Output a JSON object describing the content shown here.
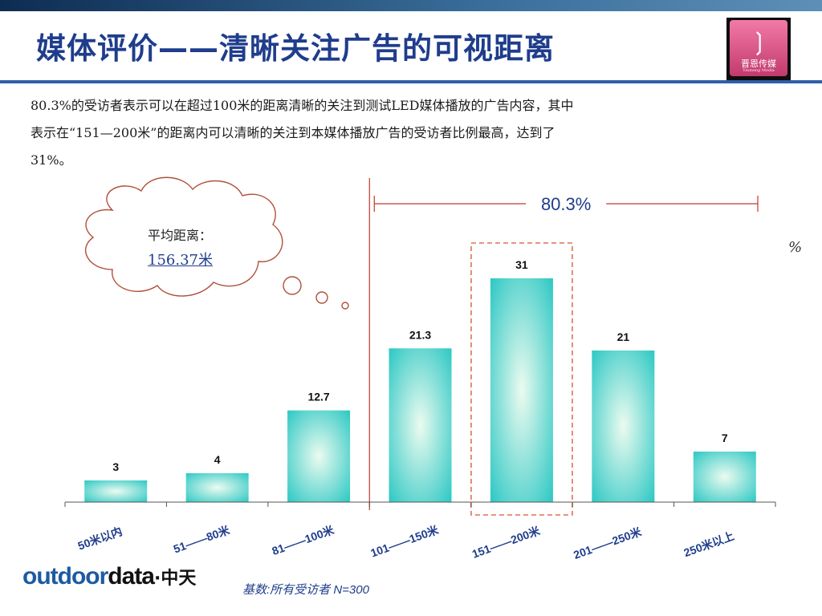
{
  "header": {
    "title": "媒体评价——清晰关注广告的可视距离",
    "logo_text": "晋恩传媒",
    "logo_subtext": "Yinmeng Media"
  },
  "summary": {
    "line1": "80.3%的受访者表示可以在超过100米的距离清晰的关注到测试LED媒体播放的广告内容，其中",
    "line2": "表示在“151—200米”的距离内可以清晰的关注到本媒体播放广告的受访者比例最高，达到了",
    "line3": "31%。"
  },
  "callout": {
    "label": "平均距离：",
    "value": "156.37米"
  },
  "bracket_label": "80.3%",
  "unit_label": "%",
  "chart_data": {
    "type": "bar",
    "categories": [
      "50米以内",
      "51——80米",
      "81——100米",
      "101——150米",
      "151——200米",
      "201——250米",
      "250米以上"
    ],
    "values": [
      3,
      4,
      12.7,
      21.3,
      31,
      21,
      7
    ],
    "value_labels": [
      "3",
      "4",
      "12.7",
      "21.3",
      "31",
      "21",
      "7"
    ],
    "ylim": [
      0,
      36
    ],
    "highlight_index": 4,
    "bracket_from_index": 3,
    "grid": false,
    "legend": "none",
    "colors": {
      "bar_edge": "#2ec8c4",
      "bar_center": "#ecfbf0",
      "highlight": "#e07050",
      "bracket": "#c0392b"
    }
  },
  "footer": {
    "brand_outdoor": "outdoor",
    "brand_data": "data",
    "brand_cn": "·中天",
    "base_note": "基数:所有受访者   N=300"
  }
}
